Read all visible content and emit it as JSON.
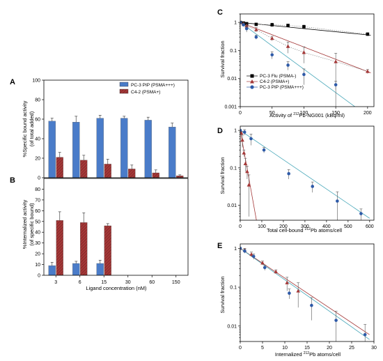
{
  "figure": {
    "panel_labels": [
      "A",
      "B",
      "C",
      "D",
      "E"
    ]
  },
  "chart_data": [
    {
      "id": "A",
      "type": "bar",
      "categories": [
        "3",
        "6",
        "15",
        "30",
        "60",
        "150"
      ],
      "ylabel": "%Specific bound activity",
      "ylabel2": "(of total added)",
      "ylim": [
        0,
        100
      ],
      "yticks": [
        0,
        20,
        40,
        60,
        80,
        100
      ],
      "legend_position": "top-right",
      "series": [
        {
          "name": "PC-3 PIP (PSMA+++)",
          "color": "#4a7cc9",
          "values": [
            58,
            57,
            61,
            61,
            59,
            52
          ],
          "errors": [
            3,
            6,
            3,
            2,
            3,
            4
          ]
        },
        {
          "name": "C4-2 (PSMA+)",
          "color": "#a43838",
          "hatched": true,
          "values": [
            21,
            18,
            14,
            9,
            5,
            2
          ],
          "errors": [
            5,
            5,
            5,
            4,
            3,
            1
          ]
        }
      ]
    },
    {
      "id": "B",
      "type": "bar",
      "categories": [
        "3",
        "6",
        "15",
        "30",
        "60",
        "150"
      ],
      "xlabel": "Ligand concentration (nM)",
      "ylabel": "%Internalized activity",
      "ylabel2": "(of specific bound)",
      "ylim": [
        0,
        90
      ],
      "yticks": [
        0,
        10,
        20,
        30,
        40,
        50,
        60,
        70,
        80
      ],
      "series": [
        {
          "name": "PC-3 PIP (PSMA+++)",
          "color": "#4a7cc9",
          "values": [
            9,
            11,
            11,
            null,
            null,
            null
          ],
          "errors": [
            3,
            2,
            3,
            null,
            null,
            null
          ]
        },
        {
          "name": "C4-2 (PSMA+)",
          "color": "#a43838",
          "hatched": true,
          "values": [
            51,
            49,
            46,
            null,
            null,
            null
          ],
          "errors": [
            8,
            9,
            2,
            null,
            null,
            null
          ]
        }
      ]
    },
    {
      "id": "C",
      "type": "scatter",
      "scale_y": "log",
      "xlabel_pre": "Activity of ",
      "xlabel_sup": "212",
      "xlabel_post": "Pb-NG001 (kBq/ml)",
      "ylabel": "Survival fraction",
      "xlim": [
        0,
        210
      ],
      "ylim": [
        0.001,
        2
      ],
      "xticks": [
        0,
        50,
        100,
        150,
        200
      ],
      "yticks": [
        0.001,
        0.01,
        0.1,
        1
      ],
      "ytick_labels": [
        "0.001",
        "0.01",
        "0.1",
        "1"
      ],
      "legend_position": "bottom-left",
      "series": [
        {
          "name": "PC-3 Flu (PSMA-)",
          "color": "#000000",
          "marker": "square",
          "x": [
            0,
            5,
            10,
            25,
            50,
            75,
            100,
            200
          ],
          "y": [
            1.0,
            0.95,
            0.9,
            0.85,
            0.82,
            0.78,
            0.7,
            0.38
          ],
          "err": [
            0.06,
            0.06,
            0.1,
            0.1,
            0.12,
            0.08,
            0.1,
            0.05
          ],
          "fit": [
            [
              0,
              1.0
            ],
            [
              205,
              0.35
            ]
          ]
        },
        {
          "name": "C4-2 (PSMA+)",
          "color": "#a43838",
          "marker": "triangle",
          "x": [
            0,
            5,
            10,
            25,
            50,
            75,
            100,
            150,
            200
          ],
          "y": [
            1.0,
            0.88,
            0.75,
            0.55,
            0.27,
            0.14,
            0.085,
            0.04,
            0.018
          ],
          "err": [
            0.05,
            0.1,
            0.12,
            0.1,
            0.05,
            0.06,
            0.05,
            0.04,
            0.003
          ],
          "fit": [
            [
              0,
              1.0
            ],
            [
              205,
              0.016
            ]
          ]
        },
        {
          "name": "PC-3 PIP (PSMA+++)",
          "color": "#2e5aa8",
          "marker": "circle",
          "x": [
            0,
            5,
            10,
            25,
            50,
            75,
            100,
            150
          ],
          "y": [
            1.0,
            0.82,
            0.6,
            0.3,
            0.07,
            0.03,
            0.014,
            0.006
          ],
          "err": [
            0.05,
            0.1,
            0.15,
            0.05,
            0.02,
            0.01,
            0.008,
            0.002
          ],
          "fit": [
            [
              0,
              1.0
            ],
            [
              180,
              0.001
            ]
          ]
        }
      ]
    },
    {
      "id": "D",
      "type": "scatter",
      "scale_y": "log",
      "xlabel_pre": "Total cell-bound ",
      "xlabel_sup": "212",
      "xlabel_post": "Pb atoms/cell",
      "ylabel": "Survival fraction",
      "xlim": [
        0,
        620
      ],
      "ylim": [
        0.004,
        1.3
      ],
      "xticks": [
        0,
        100,
        200,
        300,
        400,
        500,
        600
      ],
      "yticks": [
        0.01,
        0.1,
        1
      ],
      "ytick_labels": [
        "0.01",
        "0.1",
        "1"
      ],
      "series": [
        {
          "name": "C4-2 (PSMA+)",
          "color": "#a43838",
          "marker": "triangle",
          "x": [
            0,
            5,
            10,
            17,
            24,
            32,
            40
          ],
          "y": [
            1.0,
            0.85,
            0.55,
            0.25,
            0.13,
            0.08,
            0.035
          ],
          "err": [
            0.05,
            0.1,
            0.2,
            0.05,
            0.05,
            0.03,
            0.03
          ],
          "fit": [
            [
              0,
              1.0
            ],
            [
              75,
              0.004
            ]
          ]
        },
        {
          "name": "PC-3 PIP (PSMA+++)",
          "color": "#2e5aa8",
          "marker": "circle",
          "x": [
            0,
            20,
            50,
            110,
            225,
            335,
            450,
            560
          ],
          "y": [
            1.0,
            0.9,
            0.6,
            0.3,
            0.07,
            0.032,
            0.013,
            0.006
          ],
          "err": [
            0.05,
            0.15,
            0.2,
            0.05,
            0.02,
            0.01,
            0.01,
            0.002
          ],
          "fit": [
            [
              0,
              1.0
            ],
            [
              600,
              0.0045
            ]
          ]
        }
      ]
    },
    {
      "id": "E",
      "type": "scatter",
      "scale_y": "log",
      "xlabel_pre": "Internalized ",
      "xlabel_sup": "212",
      "xlabel_post": "Pb atoms/cell",
      "ylabel": "Survival fraction",
      "xlim": [
        0,
        30
      ],
      "ylim": [
        0.004,
        1.3
      ],
      "xticks": [
        0,
        5,
        10,
        15,
        20,
        25,
        30
      ],
      "yticks": [
        0.01,
        0.1,
        1
      ],
      "ytick_labels": [
        "0.01",
        "0.1",
        "1"
      ],
      "series": [
        {
          "name": "C4-2 (PSMA+)",
          "color": "#a43838",
          "marker": "triangle",
          "x": [
            0,
            1,
            2.5,
            5,
            8,
            10.5,
            13
          ],
          "y": [
            1.0,
            0.9,
            0.7,
            0.42,
            0.25,
            0.13,
            0.08
          ],
          "err": [
            0.05,
            0.1,
            0.1,
            0.05,
            0.03,
            0.05,
            0.05
          ],
          "fit": [
            [
              0,
              1.0
            ],
            [
              29,
              0.006
            ]
          ]
        },
        {
          "name": "PC-3 PIP (PSMA+++)",
          "color": "#2e5aa8",
          "marker": "circle",
          "x": [
            0,
            1,
            3,
            5.5,
            11,
            16,
            21.5,
            28
          ],
          "y": [
            1.0,
            0.85,
            0.62,
            0.32,
            0.07,
            0.034,
            0.014,
            0.006
          ],
          "err": [
            0.05,
            0.1,
            0.1,
            0.05,
            0.02,
            0.02,
            0.01,
            0.005
          ],
          "fit": [
            [
              0,
              1.0
            ],
            [
              29,
              0.0045
            ]
          ]
        }
      ]
    }
  ]
}
